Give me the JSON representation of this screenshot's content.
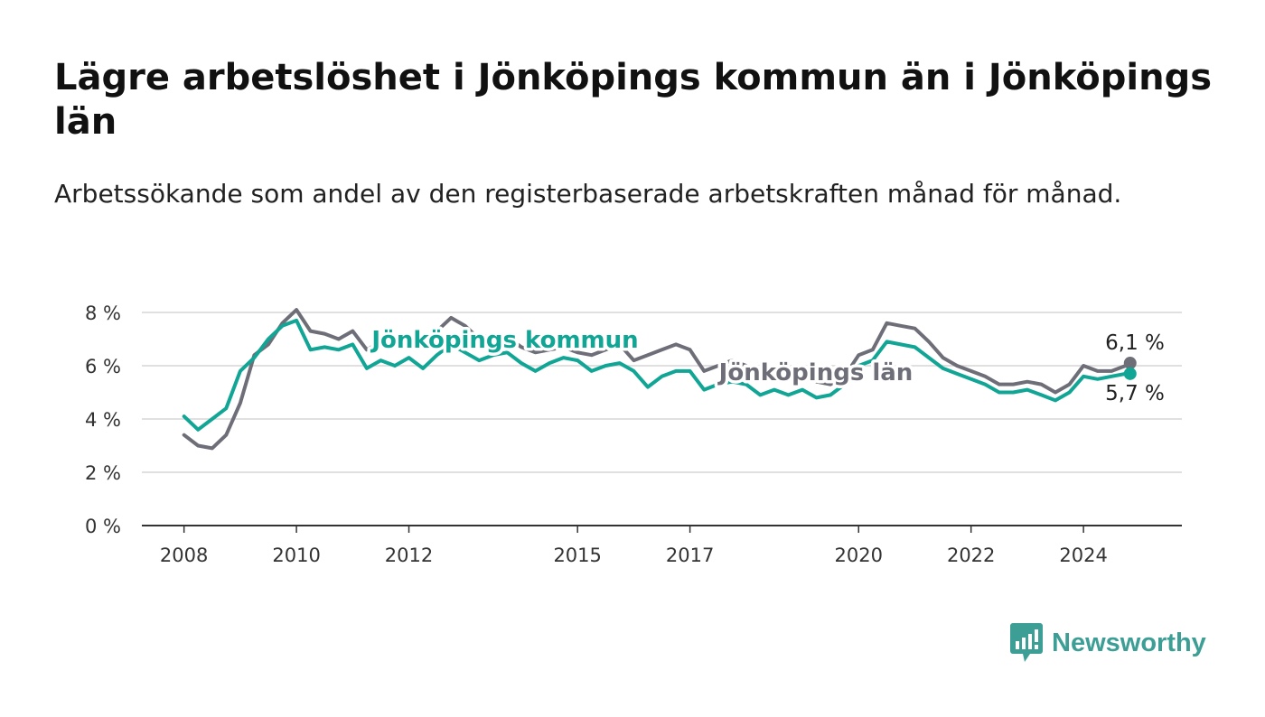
{
  "header": {
    "title": "Lägre arbetslöshet i Jönköpings kommun än i Jönköpings län",
    "subtitle": "Arbetssökande som andel av den registerbaserade arbetskraften månad för månad."
  },
  "branding": {
    "logo_text": "Newsworthy",
    "logo_icon": "bar-chart-icon",
    "logo_color": "#3d9e96"
  },
  "chart_data": {
    "type": "line",
    "title": "Lägre arbetslöshet i Jönköpings kommun än i Jönköpings län",
    "subtitle": "Arbetssökande som andel av den registerbaserade arbetskraften månad för månad.",
    "x_range": [
      2007.25,
      2025.75
    ],
    "ylim": [
      0,
      8
    ],
    "y_ticks": [
      0,
      2,
      4,
      6,
      8
    ],
    "y_tick_labels": [
      "0 %",
      "2 %",
      "4 %",
      "6 %",
      "8 %"
    ],
    "x_ticks": [
      2008,
      2010,
      2012,
      2015,
      2017,
      2020,
      2022,
      2024
    ],
    "x_tick_labels": [
      "2008",
      "2010",
      "2012",
      "2015",
      "2017",
      "2020",
      "2022",
      "2024"
    ],
    "grid": true,
    "series": [
      {
        "name": "Jönköpings län",
        "color": "#6e6e78",
        "end_label": "6,1 %",
        "x": [
          2008.0,
          2008.25,
          2008.5,
          2008.75,
          2009.0,
          2009.25,
          2009.5,
          2009.75,
          2010.0,
          2010.25,
          2010.5,
          2010.75,
          2011.0,
          2011.25,
          2011.5,
          2011.75,
          2012.0,
          2012.25,
          2012.5,
          2012.75,
          2013.0,
          2013.25,
          2013.5,
          2013.75,
          2014.0,
          2014.25,
          2014.5,
          2014.75,
          2015.0,
          2015.25,
          2015.5,
          2015.75,
          2016.0,
          2016.25,
          2016.5,
          2016.75,
          2017.0,
          2017.25,
          2017.5,
          2017.75,
          2018.0,
          2018.25,
          2018.5,
          2018.75,
          2019.0,
          2019.25,
          2019.5,
          2019.75,
          2020.0,
          2020.25,
          2020.5,
          2020.75,
          2021.0,
          2021.25,
          2021.5,
          2021.75,
          2022.0,
          2022.25,
          2022.5,
          2022.75,
          2023.0,
          2023.25,
          2023.5,
          2023.75,
          2024.0,
          2024.25,
          2024.5,
          2024.75,
          2024.83
        ],
        "values": [
          3.4,
          3.0,
          2.9,
          3.4,
          4.6,
          6.4,
          6.8,
          7.6,
          8.1,
          7.3,
          7.2,
          7.0,
          7.3,
          6.6,
          6.9,
          6.7,
          6.9,
          6.8,
          7.3,
          7.8,
          7.5,
          7.0,
          7.2,
          7.1,
          6.7,
          6.5,
          6.6,
          6.7,
          6.5,
          6.4,
          6.6,
          6.8,
          6.2,
          6.4,
          6.6,
          6.8,
          6.6,
          5.8,
          6.0,
          6.2,
          6.0,
          5.5,
          5.7,
          5.5,
          5.6,
          5.4,
          5.3,
          5.6,
          6.4,
          6.6,
          7.6,
          7.5,
          7.4,
          6.9,
          6.3,
          6.0,
          5.8,
          5.6,
          5.3,
          5.3,
          5.4,
          5.3,
          5.0,
          5.3,
          6.0,
          5.8,
          5.8,
          6.0,
          6.1
        ]
      },
      {
        "name": "Jönköpings kommun",
        "color": "#11a596",
        "end_label": "5,7 %",
        "x": [
          2008.0,
          2008.25,
          2008.5,
          2008.75,
          2009.0,
          2009.25,
          2009.5,
          2009.75,
          2010.0,
          2010.25,
          2010.5,
          2010.75,
          2011.0,
          2011.25,
          2011.5,
          2011.75,
          2012.0,
          2012.25,
          2012.5,
          2012.75,
          2013.0,
          2013.25,
          2013.5,
          2013.75,
          2014.0,
          2014.25,
          2014.5,
          2014.75,
          2015.0,
          2015.25,
          2015.5,
          2015.75,
          2016.0,
          2016.25,
          2016.5,
          2016.75,
          2017.0,
          2017.25,
          2017.5,
          2017.75,
          2018.0,
          2018.25,
          2018.5,
          2018.75,
          2019.0,
          2019.25,
          2019.5,
          2019.75,
          2020.0,
          2020.25,
          2020.5,
          2020.75,
          2021.0,
          2021.25,
          2021.5,
          2021.75,
          2022.0,
          2022.25,
          2022.5,
          2022.75,
          2023.0,
          2023.25,
          2023.5,
          2023.75,
          2024.0,
          2024.25,
          2024.5,
          2024.75,
          2024.83
        ],
        "values": [
          4.1,
          3.6,
          4.0,
          4.4,
          5.8,
          6.3,
          7.0,
          7.5,
          7.7,
          6.6,
          6.7,
          6.6,
          6.8,
          5.9,
          6.2,
          6.0,
          6.3,
          5.9,
          6.4,
          6.8,
          6.5,
          6.2,
          6.4,
          6.5,
          6.1,
          5.8,
          6.1,
          6.3,
          6.2,
          5.8,
          6.0,
          6.1,
          5.8,
          5.2,
          5.6,
          5.8,
          5.8,
          5.1,
          5.3,
          5.4,
          5.3,
          4.9,
          5.1,
          4.9,
          5.1,
          4.8,
          4.9,
          5.3,
          6.0,
          6.2,
          6.9,
          6.8,
          6.7,
          6.3,
          5.9,
          5.7,
          5.5,
          5.3,
          5.0,
          5.0,
          5.1,
          4.9,
          4.7,
          5.0,
          5.6,
          5.5,
          5.6,
          5.7,
          5.7
        ]
      }
    ]
  }
}
